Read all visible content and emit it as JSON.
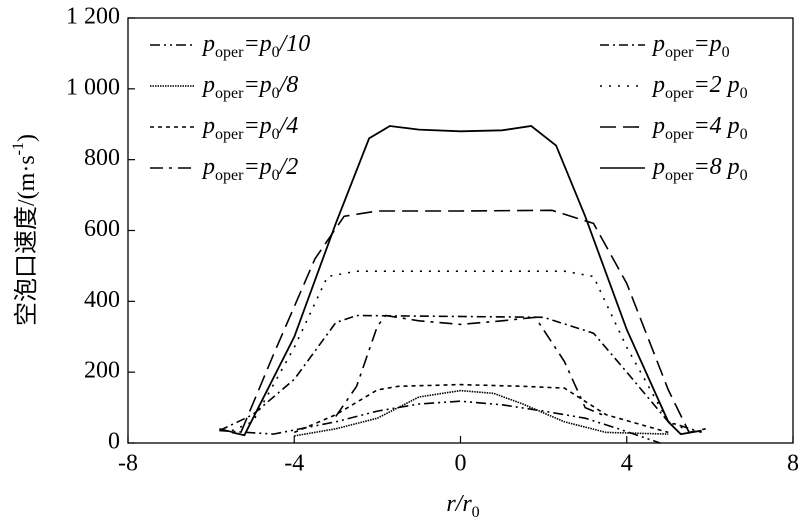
{
  "chart_data": {
    "type": "line",
    "x_label": "r/r_0",
    "y_label": "空泡口速度/(m·s^-1)",
    "xlim": [
      -8,
      8
    ],
    "xticks": [
      -8,
      -4,
      0,
      4,
      8
    ],
    "ylim": [
      0,
      1200
    ],
    "yticks": [
      0,
      200,
      400,
      600,
      800,
      {
        "value": 1000,
        "label": "1 000"
      },
      {
        "value": 1200,
        "label": "1 200"
      }
    ],
    "series": [
      {
        "name": "p_oper=p_0/10",
        "color": "#000",
        "dash": "10 4 2 4 2 4",
        "x": [
          -5.8,
          -4.5,
          -3,
          -2,
          -1,
          0,
          1,
          2,
          3,
          3.8,
          4.8
        ],
        "values": [
          35,
          25,
          60,
          90,
          110,
          118,
          108,
          90,
          70,
          40,
          0
        ]
      },
      {
        "name": "p_oper=p_0/8",
        "color": "#000",
        "dash": "1.5 1",
        "x": [
          -4,
          -3,
          -2,
          -1,
          0,
          0.8,
          1.5,
          2.5,
          3.5,
          5
        ],
        "values": [
          20,
          40,
          70,
          130,
          148,
          140,
          110,
          60,
          30,
          25
        ]
      },
      {
        "name": "p_oper=p_0/4",
        "color": "#000",
        "dash": "4 4",
        "x": [
          -4,
          -3,
          -2,
          -1.5,
          0,
          1.5,
          2.5,
          3.5,
          5
        ],
        "values": [
          30,
          80,
          150,
          160,
          165,
          160,
          155,
          80,
          30
        ]
      },
      {
        "name": "p_oper=p_0/2",
        "color": "#000",
        "dash": "13 6 3 6",
        "x": [
          -3,
          -2.5,
          -2,
          -1.8,
          -1,
          0,
          1,
          1.8,
          2.5,
          3,
          3.5
        ],
        "values": [
          75,
          160,
          330,
          360,
          345,
          335,
          345,
          355,
          230,
          100,
          75
        ]
      },
      {
        "name": "p_oper=p_0",
        "color": "#000",
        "dash": "9 4 2 4",
        "x": [
          -5.8,
          -5,
          -4,
          -3,
          -2.5,
          2,
          3.2,
          4,
          5,
          5.8
        ],
        "values": [
          35,
          80,
          180,
          340,
          360,
          355,
          310,
          200,
          60,
          30
        ]
      },
      {
        "name": "p_oper=2 p_0",
        "color": "#000",
        "dash": "2 7",
        "x": [
          -5.5,
          -5,
          -4,
          -3.2,
          -2.5,
          2.5,
          3.2,
          4,
          5,
          5.5
        ],
        "values": [
          35,
          60,
          270,
          470,
          485,
          485,
          470,
          270,
          60,
          35
        ]
      },
      {
        "name": "p_oper=4 p_0",
        "color": "#000",
        "dash": "16 7",
        "x": [
          -5.8,
          -5.3,
          -4.5,
          -3.5,
          -2.8,
          -2,
          0,
          2.2,
          3.2,
          4,
          5,
          5.5,
          5.9
        ],
        "values": [
          40,
          25,
          250,
          520,
          640,
          655,
          655,
          657,
          620,
          450,
          150,
          30,
          40
        ]
      },
      {
        "name": "p_oper=8 p_0",
        "color": "#000",
        "dash": "none",
        "x": [
          -5.5,
          -5.2,
          -4,
          -3,
          -2.2,
          -1.7,
          -1,
          0,
          1,
          1.7,
          2.3,
          3,
          4,
          5,
          5.3,
          5.8
        ],
        "values": [
          30,
          22,
          300,
          620,
          860,
          895,
          885,
          880,
          883,
          895,
          840,
          640,
          320,
          60,
          25,
          35
        ]
      }
    ]
  }
}
